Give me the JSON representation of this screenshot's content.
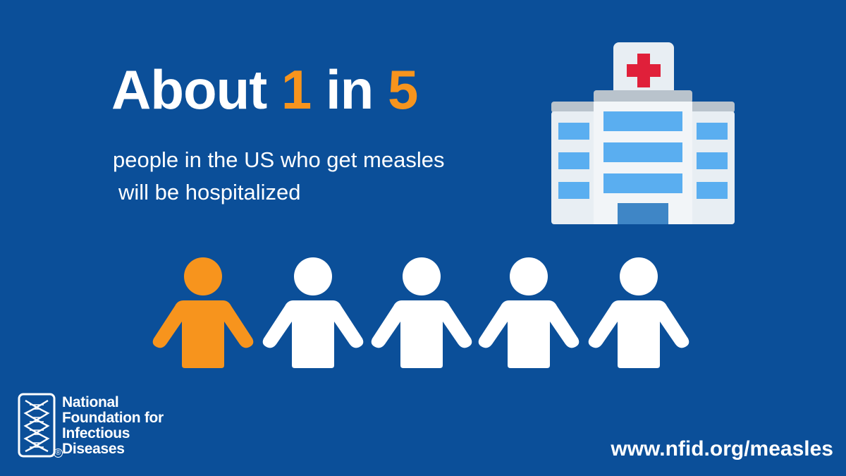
{
  "headline": {
    "prefix": "About ",
    "numerator": "1",
    "middle": " in ",
    "denominator": "5"
  },
  "subtext": {
    "line1": "people in the US who get measles",
    "line2": "will be hospitalized"
  },
  "people_highlighted_count": 1,
  "people_total_count": 5,
  "organization": {
    "name_lines": [
      "National",
      "Foundation for",
      "Infectious",
      "Diseases"
    ],
    "registered_mark": "®"
  },
  "url": "www.nfid.org/measles",
  "colors": {
    "background": "#0b4f99",
    "accent": "#f7941d",
    "text": "#ffffff",
    "red_cross": "#e0203a",
    "window": "#5aaef0"
  },
  "icons": {
    "hospital": "hospital-icon",
    "person": "person-icon",
    "logo": "nfid-logo-icon"
  }
}
